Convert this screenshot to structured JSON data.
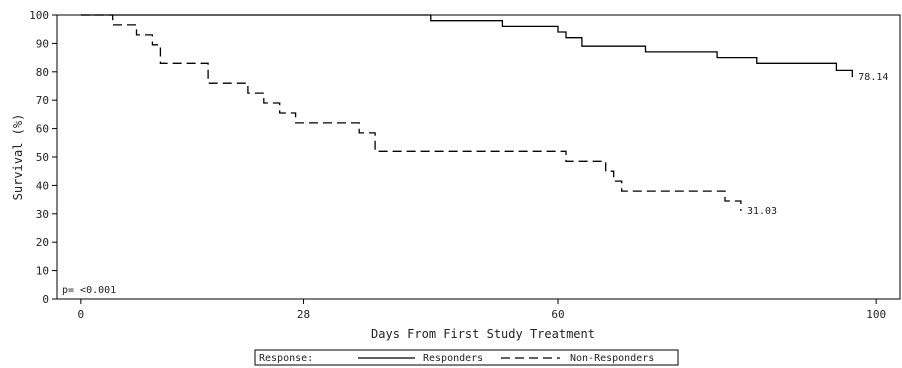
{
  "chart_data": {
    "type": "line",
    "step": true,
    "xlabel": "Days From First Study Treatment",
    "ylabel": "Survival (%)",
    "xlim": [
      -3,
      103
    ],
    "ylim": [
      0,
      100
    ],
    "x_ticks": [
      0,
      28,
      60,
      100
    ],
    "y_ticks": [
      0,
      10,
      20,
      30,
      40,
      50,
      60,
      70,
      80,
      90,
      100
    ],
    "grid": false,
    "p_value_label": "p= <0.001",
    "legend": {
      "placement": "bottom-center",
      "title": "Response:"
    },
    "series": [
      {
        "name": "Responders",
        "style": "solid",
        "color": "#000000",
        "points": [
          [
            0,
            100
          ],
          [
            44,
            100
          ],
          [
            44,
            98
          ],
          [
            53,
            98
          ],
          [
            53,
            96
          ],
          [
            60,
            96
          ],
          [
            60,
            94
          ],
          [
            61,
            94
          ],
          [
            61,
            92
          ],
          [
            63,
            92
          ],
          [
            63,
            89
          ],
          [
            71,
            89
          ],
          [
            71,
            87
          ],
          [
            80,
            87
          ],
          [
            80,
            85
          ],
          [
            85,
            85
          ],
          [
            85,
            83
          ],
          [
            95,
            83
          ],
          [
            95,
            80.5
          ],
          [
            97,
            80.5
          ],
          [
            97,
            78.14
          ]
        ],
        "end_label": "78.14"
      },
      {
        "name": "Non-Responders",
        "style": "dashed",
        "color": "#000000",
        "points": [
          [
            0,
            100
          ],
          [
            4,
            100
          ],
          [
            4,
            96.5
          ],
          [
            7,
            96.5
          ],
          [
            7,
            93
          ],
          [
            9,
            93
          ],
          [
            9,
            89.5
          ],
          [
            10,
            89.5
          ],
          [
            10,
            83
          ],
          [
            16,
            83
          ],
          [
            16,
            76
          ],
          [
            21,
            76
          ],
          [
            21,
            72.5
          ],
          [
            23,
            72.5
          ],
          [
            23,
            69
          ],
          [
            25,
            69
          ],
          [
            25,
            65.5
          ],
          [
            27,
            65.5
          ],
          [
            27,
            62
          ],
          [
            35,
            62
          ],
          [
            35,
            58.5
          ],
          [
            37,
            58.5
          ],
          [
            37,
            52
          ],
          [
            61,
            52
          ],
          [
            61,
            48.5
          ],
          [
            66,
            48.5
          ],
          [
            66,
            45
          ],
          [
            67,
            45
          ],
          [
            67,
            41.5
          ],
          [
            68,
            41.5
          ],
          [
            68,
            38
          ],
          [
            81,
            38
          ],
          [
            81,
            34.5
          ],
          [
            83,
            34.5
          ],
          [
            83,
            31.03
          ]
        ],
        "end_label": "31.03"
      }
    ]
  }
}
